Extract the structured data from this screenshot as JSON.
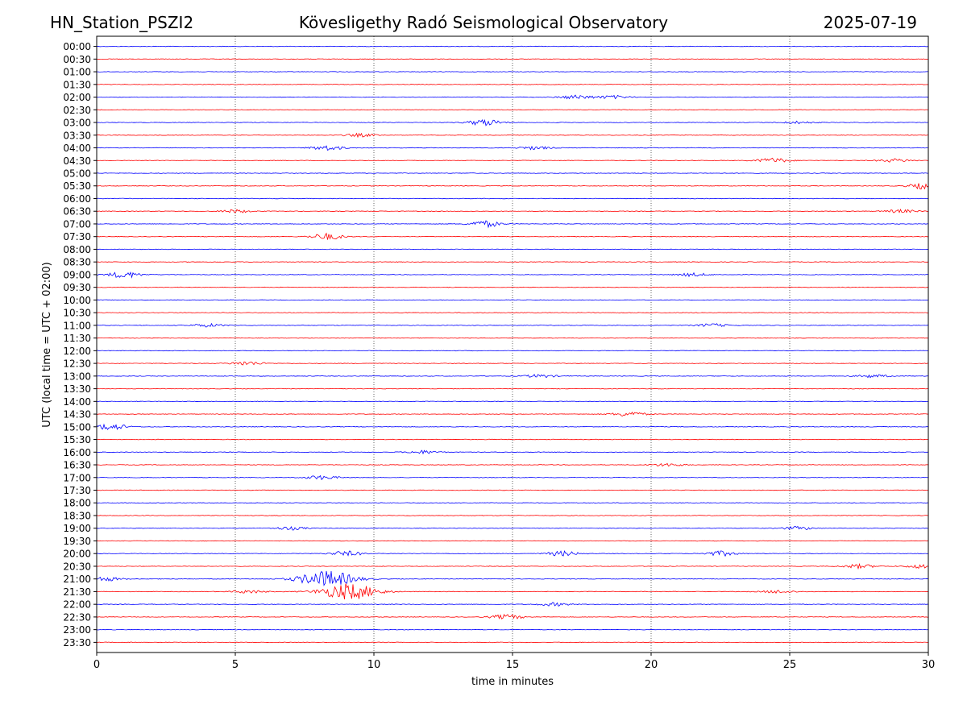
{
  "header": {
    "station": "HN_Station_PSZI2",
    "title": "Kövesligethy Radó Seismological Observatory",
    "date": "2025-07-19"
  },
  "chart_data": {
    "type": "line",
    "subtype": "helicorder",
    "xlabel": "time in minutes",
    "ylabel": "UTC (local time = UTC + 02:00)",
    "xlim": [
      0,
      30
    ],
    "x_ticks": [
      0,
      5,
      10,
      15,
      20,
      25,
      30
    ],
    "grid": "vertical dotted at 5,10,15,20,25",
    "colors": [
      "#0000ff",
      "#ff0000"
    ],
    "rows": [
      "00:00",
      "00:30",
      "01:00",
      "01:30",
      "02:00",
      "02:30",
      "03:00",
      "03:30",
      "04:00",
      "04:30",
      "05:00",
      "05:30",
      "06:00",
      "06:30",
      "07:00",
      "07:30",
      "08:00",
      "08:30",
      "09:00",
      "09:30",
      "10:00",
      "10:30",
      "11:00",
      "11:30",
      "12:00",
      "12:30",
      "13:00",
      "13:30",
      "14:00",
      "14:30",
      "15:00",
      "15:30",
      "16:00",
      "16:30",
      "17:00",
      "17:30",
      "18:00",
      "18:30",
      "19:00",
      "19:30",
      "20:00",
      "20:30",
      "21:00",
      "21:30",
      "22:00",
      "22:30",
      "23:00",
      "23:30"
    ],
    "events": [
      {
        "row": 4,
        "minute": 17.3,
        "amp": 2.5
      },
      {
        "row": 4,
        "minute": 18.6,
        "amp": 2
      },
      {
        "row": 6,
        "minute": 14.0,
        "amp": 4
      },
      {
        "row": 6,
        "minute": 25.3,
        "amp": 1.5
      },
      {
        "row": 7,
        "minute": 9.5,
        "amp": 2
      },
      {
        "row": 8,
        "minute": 8.3,
        "amp": 3
      },
      {
        "row": 8,
        "minute": 15.8,
        "amp": 2
      },
      {
        "row": 9,
        "minute": 24.4,
        "amp": 3
      },
      {
        "row": 9,
        "minute": 28.8,
        "amp": 2
      },
      {
        "row": 11,
        "minute": 29.9,
        "amp": 4
      },
      {
        "row": 13,
        "minute": 5.0,
        "amp": 2
      },
      {
        "row": 13,
        "minute": 29.0,
        "amp": 2
      },
      {
        "row": 14,
        "minute": 14.0,
        "amp": 4
      },
      {
        "row": 15,
        "minute": 8.3,
        "amp": 4
      },
      {
        "row": 18,
        "minute": 1.0,
        "amp": 4
      },
      {
        "row": 18,
        "minute": 21.5,
        "amp": 2
      },
      {
        "row": 22,
        "minute": 4.0,
        "amp": 2
      },
      {
        "row": 22,
        "minute": 22.2,
        "amp": 2
      },
      {
        "row": 25,
        "minute": 5.4,
        "amp": 2.5
      },
      {
        "row": 26,
        "minute": 16.0,
        "amp": 2
      },
      {
        "row": 26,
        "minute": 28.0,
        "amp": 2
      },
      {
        "row": 29,
        "minute": 19.2,
        "amp": 3
      },
      {
        "row": 30,
        "minute": 0.5,
        "amp": 4
      },
      {
        "row": 32,
        "minute": 11.8,
        "amp": 2
      },
      {
        "row": 33,
        "minute": 20.6,
        "amp": 2
      },
      {
        "row": 34,
        "minute": 8.1,
        "amp": 2.5
      },
      {
        "row": 38,
        "minute": 7.0,
        "amp": 2
      },
      {
        "row": 38,
        "minute": 25.3,
        "amp": 2
      },
      {
        "row": 40,
        "minute": 9.0,
        "amp": 3
      },
      {
        "row": 40,
        "minute": 16.8,
        "amp": 3
      },
      {
        "row": 40,
        "minute": 22.5,
        "amp": 3
      },
      {
        "row": 41,
        "minute": 27.5,
        "amp": 2.5
      },
      {
        "row": 41,
        "minute": 29.8,
        "amp": 2.5
      },
      {
        "row": 42,
        "minute": 8.3,
        "amp": 10
      },
      {
        "row": 42,
        "minute": 0.3,
        "amp": 2.5
      },
      {
        "row": 43,
        "minute": 9.1,
        "amp": 10
      },
      {
        "row": 43,
        "minute": 5.5,
        "amp": 2
      },
      {
        "row": 43,
        "minute": 24.6,
        "amp": 2
      },
      {
        "row": 44,
        "minute": 16.5,
        "amp": 2
      },
      {
        "row": 45,
        "minute": 14.8,
        "amp": 3
      }
    ]
  }
}
